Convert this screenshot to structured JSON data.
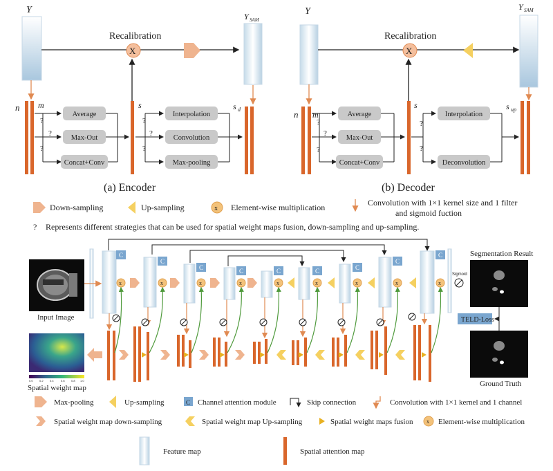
{
  "encoder": {
    "y_label": "Y",
    "ysam_label": "Y",
    "ysam_sub": "SAM",
    "recal_label": "Recalibration",
    "mult_symbol": "X",
    "n_label": "n",
    "m_label": "m",
    "s_label": "s",
    "sd_label": "s",
    "sd_sub": "d",
    "q": "?",
    "fusion_boxes": [
      "Average",
      "Max-Out",
      "Concat+Conv"
    ],
    "sample_boxes": [
      "Interpolation",
      "Convolution",
      "Max-pooling"
    ],
    "caption": "(a) Encoder"
  },
  "decoder": {
    "y_label": "Y",
    "ysam_label": "Y",
    "ysam_sub": "SAM",
    "recal_label": "Recalibration",
    "mult_symbol": "X",
    "n_label": "n",
    "m_label": "m",
    "s_label": "s",
    "sup_label": "s",
    "sup_sub": "up",
    "q": "?",
    "fusion_boxes": [
      "Average",
      "Max-Out",
      "Concat+Conv"
    ],
    "sample_boxes": [
      "Interpolation",
      "Deconvolution"
    ],
    "caption": "(b) Decoder"
  },
  "legend_top": {
    "down": "Down-sampling",
    "up": "Up-sampling",
    "mult_symbol": "x",
    "mult": "Element-wise multiplication",
    "conv_line1": "Convolution with 1×1 kernel size and 1 filter",
    "conv_line2": "and sigmoid fuction",
    "q": "?",
    "question_note": "Represents different strategies that can be used for spatial weight maps fusion, down-sampling and up-sampling."
  },
  "network": {
    "input_caption": "Input Image",
    "weight_caption": "Spatial weight map",
    "seg_title": "Segmentation Result",
    "gt_caption": "Ground Truth",
    "loss_label": "TELD-Loss",
    "sigmoid_label": "Sigmoid",
    "c_symbol": "C",
    "x_symbol": "x",
    "colorbar_ticks": [
      "0.0",
      "0.2",
      "0.4",
      "0.6",
      "0.8",
      "1.0"
    ]
  },
  "legend_bottom": {
    "maxpool": "Max-pooling",
    "upsampling": "Up-sampling",
    "c_symbol": "C",
    "channel_att": "Channel attention module",
    "skip": "Skip connection",
    "conv1": "Convolution with 1×1 kernel and 1 channel",
    "swm_down": "Spatial weight map down-sampling",
    "swm_up": "Spatial weight map Up-sampling",
    "swm_fusion": "Spatial weight maps fusion",
    "x_symbol": "x",
    "elem_mult": "Element-wise multiplication",
    "feature_map": "Feature map",
    "spatial_att": "Spatial attention map"
  },
  "colors": {
    "orange_bar": "#d9662b",
    "peach": "#efb48f",
    "yellow_tri": "#f5d060",
    "gray_box": "#c9c9c9",
    "c_box": "#7aa6cf",
    "mult_circle": "#f3c27a",
    "green_line": "#4f9a3c"
  }
}
